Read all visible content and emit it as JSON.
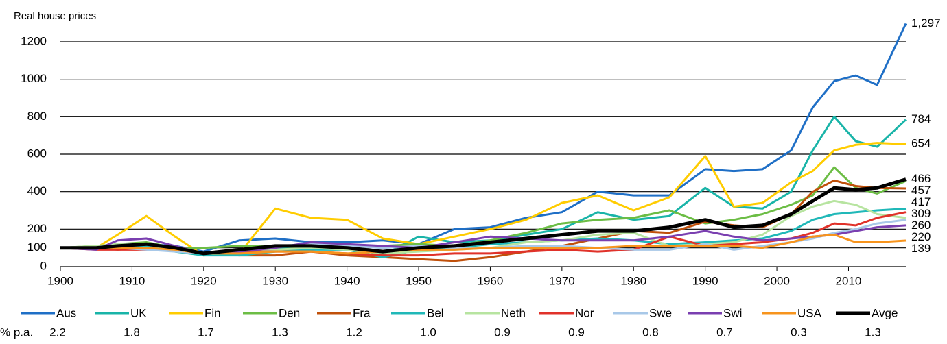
{
  "chart_data": {
    "type": "line",
    "title": "Real house prices",
    "x": [
      1900,
      1905,
      1908,
      1912,
      1916,
      1920,
      1925,
      1930,
      1935,
      1940,
      1945,
      1950,
      1955,
      1960,
      1965,
      1970,
      1975,
      1980,
      1985,
      1990,
      1994,
      1998,
      2002,
      2005,
      2008,
      2011,
      2014,
      2018
    ],
    "xlim": [
      1900,
      2018
    ],
    "xticks": [
      1900,
      1910,
      1920,
      1930,
      1940,
      1950,
      1960,
      1970,
      1980,
      1990,
      2000,
      2010
    ],
    "ylim": [
      0,
      1200
    ],
    "yticks": [
      0,
      100,
      200,
      400,
      600,
      800,
      1000,
      1200
    ],
    "grid": true,
    "legend": "bottom",
    "series": [
      {
        "name": "Aus",
        "color": "#1f6fc6",
        "values": [
          100,
          95,
          110,
          120,
          110,
          80,
          140,
          150,
          130,
          130,
          140,
          120,
          200,
          210,
          260,
          290,
          400,
          380,
          380,
          520,
          510,
          520,
          620,
          850,
          990,
          1020,
          970,
          1297
        ]
      },
      {
        "name": "UK",
        "color": "#19b4a8",
        "values": [
          100,
          105,
          100,
          110,
          80,
          60,
          90,
          100,
          110,
          110,
          60,
          160,
          130,
          140,
          170,
          200,
          290,
          250,
          270,
          420,
          320,
          310,
          400,
          620,
          800,
          670,
          640,
          784
        ]
      },
      {
        "name": "Fin",
        "color": "#ffcc00",
        "values": [
          100,
          100,
          170,
          270,
          160,
          60,
          70,
          310,
          260,
          250,
          150,
          120,
          160,
          200,
          250,
          340,
          380,
          300,
          370,
          590,
          320,
          340,
          450,
          510,
          620,
          650,
          660,
          654
        ]
      },
      {
        "name": "Den",
        "color": "#6cbd45",
        "values": [
          100,
          110,
          120,
          130,
          100,
          100,
          110,
          110,
          100,
          100,
          110,
          120,
          110,
          140,
          180,
          230,
          250,
          260,
          300,
          230,
          250,
          280,
          330,
          380,
          530,
          420,
          390,
          457
        ]
      },
      {
        "name": "Fra",
        "color": "#c0500a",
        "values": [
          100,
          100,
          90,
          100,
          90,
          70,
          60,
          60,
          80,
          60,
          50,
          40,
          30,
          50,
          80,
          110,
          150,
          190,
          180,
          240,
          220,
          210,
          280,
          400,
          460,
          430,
          420,
          417
        ]
      },
      {
        "name": "Bel",
        "color": "#20b8b8",
        "values": [
          100,
          100,
          110,
          110,
          90,
          60,
          60,
          80,
          90,
          90,
          50,
          90,
          100,
          120,
          130,
          140,
          150,
          140,
          120,
          130,
          140,
          150,
          190,
          250,
          280,
          290,
          300,
          309
        ]
      },
      {
        "name": "Neth",
        "color": "#b7e4a0",
        "values": [
          100,
          110,
          120,
          120,
          100,
          70,
          80,
          90,
          100,
          90,
          70,
          80,
          90,
          100,
          130,
          140,
          170,
          180,
          110,
          120,
          130,
          170,
          270,
          320,
          350,
          330,
          280,
          260
        ]
      },
      {
        "name": "Nor",
        "color": "#e0322a",
        "values": [
          100,
          90,
          90,
          90,
          90,
          70,
          80,
          80,
          80,
          70,
          60,
          60,
          70,
          70,
          80,
          90,
          80,
          90,
          160,
          110,
          120,
          130,
          150,
          180,
          230,
          220,
          260,
          290
        ]
      },
      {
        "name": "Swe",
        "color": "#a8c8e8",
        "values": [
          100,
          100,
          100,
          90,
          80,
          70,
          90,
          110,
          120,
          110,
          100,
          110,
          100,
          100,
          110,
          110,
          100,
          90,
          90,
          120,
          90,
          110,
          130,
          150,
          180,
          200,
          230,
          250
        ]
      },
      {
        "name": "Swi",
        "color": "#7a3fb0",
        "values": [
          100,
          90,
          140,
          150,
          110,
          70,
          80,
          100,
          130,
          120,
          110,
          100,
          130,
          160,
          150,
          140,
          140,
          140,
          160,
          190,
          160,
          140,
          150,
          160,
          170,
          190,
          210,
          220
        ]
      },
      {
        "name": "USA",
        "color": "#f7941d",
        "values": [
          100,
          100,
          100,
          100,
          90,
          70,
          70,
          80,
          80,
          70,
          80,
          90,
          90,
          100,
          100,
          100,
          100,
          110,
          110,
          110,
          110,
          100,
          130,
          160,
          170,
          130,
          130,
          139
        ]
      },
      {
        "name": "Avge",
        "color": "#000000",
        "values": [
          100,
          100,
          110,
          120,
          100,
          70,
          90,
          110,
          110,
          100,
          80,
          100,
          110,
          130,
          150,
          170,
          190,
          190,
          210,
          250,
          210,
          220,
          280,
          350,
          420,
          410,
          420,
          466
        ]
      }
    ],
    "end_labels": [
      {
        "value": 1297,
        "label": "1,297"
      },
      784,
      654,
      466,
      457,
      417,
      309,
      260,
      220,
      139
    ],
    "pa": {
      "label": "% p.a.",
      "values": [
        2.2,
        1.8,
        1.7,
        1.3,
        1.2,
        1.0,
        0.9,
        0.9,
        0.8,
        0.7,
        0.3,
        1.3
      ],
      "value_labels": [
        "2.2",
        "1.8",
        "1.7",
        "1.3",
        "1.2",
        "1.0",
        "0.9",
        "0.9",
        "0.8",
        "0.7",
        "0.3",
        "1.3"
      ]
    }
  }
}
